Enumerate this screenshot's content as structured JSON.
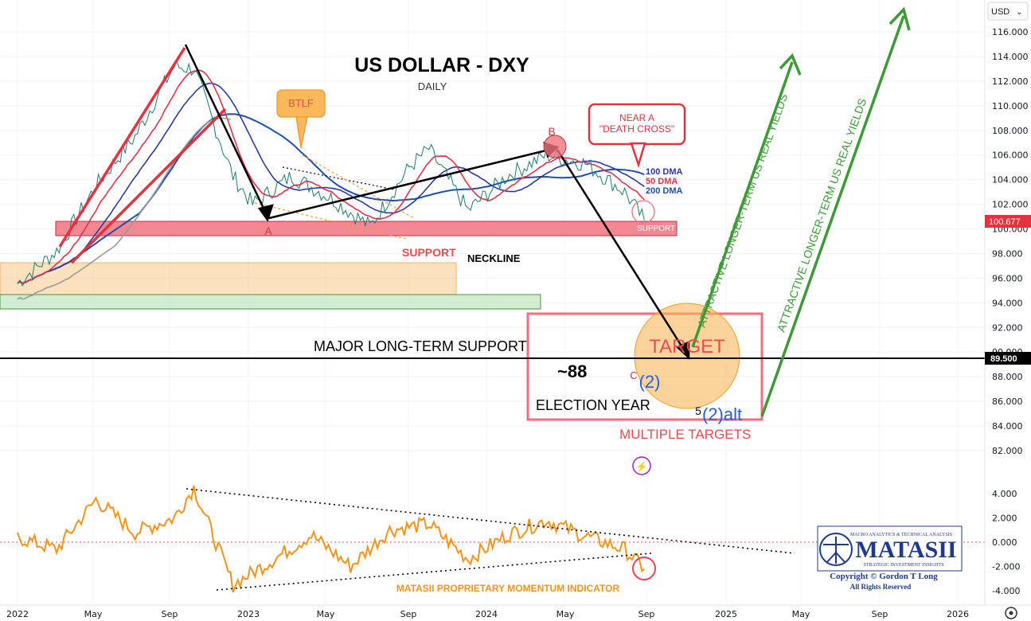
{
  "header": {
    "currency": "USD"
  },
  "chart_data": {
    "type": "line",
    "title": "US DOLLAR - DXY",
    "subtitle": "DAILY",
    "price_axis": {
      "ticks": [
        "116.000",
        "114.000",
        "112.000",
        "110.000",
        "108.000",
        "106.000",
        "104.000",
        "102.000",
        "100.000",
        "98.000",
        "96.000",
        "94.000",
        "92.000",
        "90.000",
        "88.000",
        "86.000",
        "84.000",
        "82.000"
      ],
      "range": [
        80.5,
        118.5
      ],
      "current_price": "100.677",
      "marked_level": "89.500"
    },
    "momentum_axis": {
      "ticks": [
        "4.000",
        "2.000",
        "0.000",
        "-2.000",
        "-4.000"
      ],
      "range": [
        -4.6,
        5.0
      ]
    },
    "time_axis": {
      "ticks": [
        "2022",
        "May",
        "Sep",
        "2023",
        "May",
        "Sep",
        "2024",
        "May",
        "Sep",
        "2025",
        "May",
        "Sep",
        "2026"
      ]
    },
    "price_series": {
      "name": "DXY",
      "x": [
        "2022-01",
        "2022-03",
        "2022-05",
        "2022-07",
        "2022-09",
        "2022-10",
        "2022-12",
        "2023-01",
        "2023-03",
        "2023-05",
        "2023-07",
        "2023-09",
        "2023-10",
        "2023-12",
        "2024-02",
        "2024-04",
        "2024-06",
        "2024-08",
        "2024-09"
      ],
      "y": [
        95.6,
        98.2,
        103.5,
        107.5,
        113.2,
        113.0,
        104.3,
        102.0,
        104.3,
        102.5,
        100.2,
        105.0,
        106.5,
        101.5,
        104.3,
        106.0,
        105.3,
        103.0,
        100.7
      ]
    },
    "moving_averages": [
      {
        "name": "50 DMA",
        "color": "#e0334a"
      },
      {
        "name": "100 DMA",
        "color": "#2b3a9f"
      },
      {
        "name": "200 DMA",
        "color": "#1f4fa8"
      }
    ],
    "momentum_series": {
      "name": "MATASII PROPRIETARY MOMENTUM INDICATOR",
      "x": [
        "2022-01",
        "2022-03",
        "2022-05",
        "2022-07",
        "2022-09",
        "2022-10",
        "2022-12",
        "2023-02",
        "2023-04",
        "2023-06",
        "2023-08",
        "2023-10",
        "2023-12",
        "2024-02",
        "2024-04",
        "2024-06",
        "2024-08",
        "2024-09"
      ],
      "y": [
        0.4,
        -0.6,
        3.5,
        0.8,
        2.0,
        4.5,
        -3.5,
        -1.5,
        0.6,
        -2.0,
        1.0,
        1.5,
        -1.4,
        0.6,
        1.8,
        0.5,
        -0.6,
        -2.2
      ]
    },
    "annotations": {
      "btlf": "BTLF",
      "near_death_cross": [
        "NEAR A",
        "\"DEATH CROSS\""
      ],
      "support_label": "SUPPORT",
      "support_box_label": "SUPPORT",
      "neckline": "NECKLINE",
      "point_a": "A",
      "point_b": "B",
      "point_c": "C",
      "major_support": "MAJOR LONG-TERM SUPPORT",
      "target_value": "~88",
      "election_year": "ELECTION YEAR",
      "target_text": "TARGET",
      "wave_2": "(2)",
      "wave_5": "5",
      "wave_2_alt": "(2)alt",
      "multiple_targets": "MULTIPLE TARGETS",
      "yields_1": "ATTRACTIVE LONGER-TERM US REAL YIELDS",
      "yields_2": "ATTRACTIVE LONGER-TERM US REAL YIELDS",
      "ma_100_label": "100 DMA",
      "ma_50_label": "50 DMA",
      "ma_200_label": "200 DMA",
      "lightning": "⚡"
    },
    "logo": {
      "tagline": "MACRO ANALYTICS & TECHNICAL ANALYSIS",
      "name": "MATASII",
      "subtitle": "STRATEGIC INVESTMENT INSIGHTS",
      "copyright": "Copyright © Gordon T Long",
      "rights": "All Rights Reserved"
    },
    "colors": {
      "price": "#1f7a6a",
      "momentum": "#f7931a",
      "arrow": "#000000",
      "support_box": "#f2737f",
      "target_circle": "#f9b85a",
      "green_arrow": "#3d9a36"
    }
  }
}
